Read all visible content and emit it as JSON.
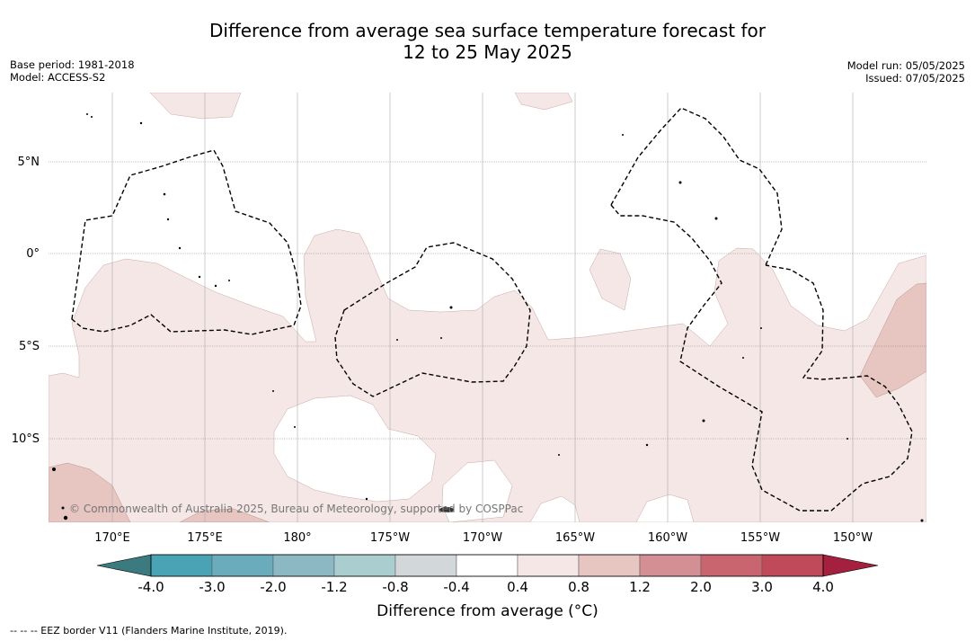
{
  "title": {
    "line1": "Difference from average sea surface temperature forecast for",
    "line2": "12 to 25 May 2025"
  },
  "left_info": {
    "base_period": "Base period: 1981-2018",
    "model": "Model: ACCESS-S2"
  },
  "right_info": {
    "model_run": "Model run: 05/05/2025",
    "issued": "Issued: 07/05/2025"
  },
  "map": {
    "lat_labels": [
      "5°N",
      "0°",
      "5°S",
      "10°S"
    ],
    "lon_labels": [
      "170°E",
      "175°E",
      "180°",
      "175°W",
      "170°W",
      "165°W",
      "160°W",
      "155°W",
      "150°W"
    ],
    "copyright": "© Commonwealth of Australia 2025, Bureau of Meteorology, supported by COSPPac"
  },
  "colorbar": {
    "title": "Difference from average (°C)",
    "labels": [
      "-4.0",
      "-3.0",
      "-2.0",
      "-1.2",
      "-0.8",
      "-0.4",
      "0.4",
      "0.8",
      "1.2",
      "2.0",
      "3.0",
      "4.0"
    ],
    "colors": [
      "#3b7b80",
      "#4aa3b4",
      "#6aacbc",
      "#8cb8c4",
      "#aacdd0",
      "#d2d8da",
      "#ffffff",
      "#f4e7e6",
      "#e7c5c0",
      "#d48f95",
      "#c9656e",
      "#c0495a",
      "#a5203e"
    ]
  },
  "footnote": "--  --  -- EEZ border V11 (Flanders Marine Institute, 2019)."
}
